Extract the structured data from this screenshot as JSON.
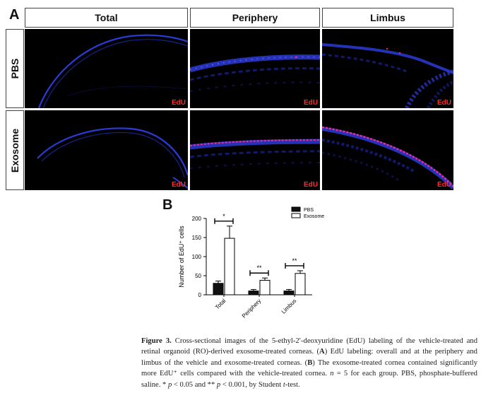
{
  "panel_a": {
    "letter": "A",
    "columns": [
      "Total",
      "Periphery",
      "Limbus"
    ],
    "rows": [
      "PBS",
      "Exosome"
    ],
    "stain_label": "EdU",
    "colors": {
      "nuclei": "#2a3bd6",
      "edu": "#ff2a6a",
      "background": "#000000"
    }
  },
  "panel_b": {
    "letter": "B"
  },
  "chart_data": {
    "type": "bar",
    "categories": [
      "Total",
      "Periphery",
      "Limbus"
    ],
    "series": [
      {
        "name": "PBS",
        "values": [
          30,
          10,
          10
        ],
        "errors": [
          6,
          4,
          4
        ],
        "color": "#111111"
      },
      {
        "name": "Exosome",
        "values": [
          148,
          38,
          56
        ],
        "errors": [
          32,
          6,
          7
        ],
        "color": "#ffffff"
      }
    ],
    "significance": [
      "*",
      "**",
      "**"
    ],
    "ylabel": "Number of EdU⁺ cells",
    "ylim": [
      0,
      200
    ],
    "yticks": [
      0,
      50,
      100,
      150,
      200
    ],
    "legend_placement": "top-right",
    "grid": false
  },
  "caption": {
    "figure_label": "Figure 3.",
    "segments": [
      {
        "t": "Figure 3.",
        "b": true
      },
      {
        "t": " Cross-sectional images of the 5-ethyl-2′-deoxyuridine (EdU) labeling of the vehicle-treated and retinal organoid (RO)-derived exosome-treated corneas. (",
        "b": false
      },
      {
        "t": "A",
        "b": true
      },
      {
        "t": ") EdU labeling: overall and at the periphery and limbus of the vehicle and exosome-treated corneas. (",
        "b": false
      },
      {
        "t": "B",
        "b": true
      },
      {
        "t": ") The exosome-treated cornea contained significantly more EdU⁺ cells compared with the vehicle-treated cornea. ",
        "b": false
      },
      {
        "t": "n",
        "i": true
      },
      {
        "t": " = 5 for each group. PBS, phosphate-buffered saline. * ",
        "b": false
      },
      {
        "t": "p",
        "i": true
      },
      {
        "t": " < 0.05 and ** ",
        "b": false
      },
      {
        "t": "p",
        "i": true
      },
      {
        "t": " < 0.001, by Student ",
        "b": false
      },
      {
        "t": "t",
        "i": true
      },
      {
        "t": "-test.",
        "b": false
      }
    ]
  }
}
